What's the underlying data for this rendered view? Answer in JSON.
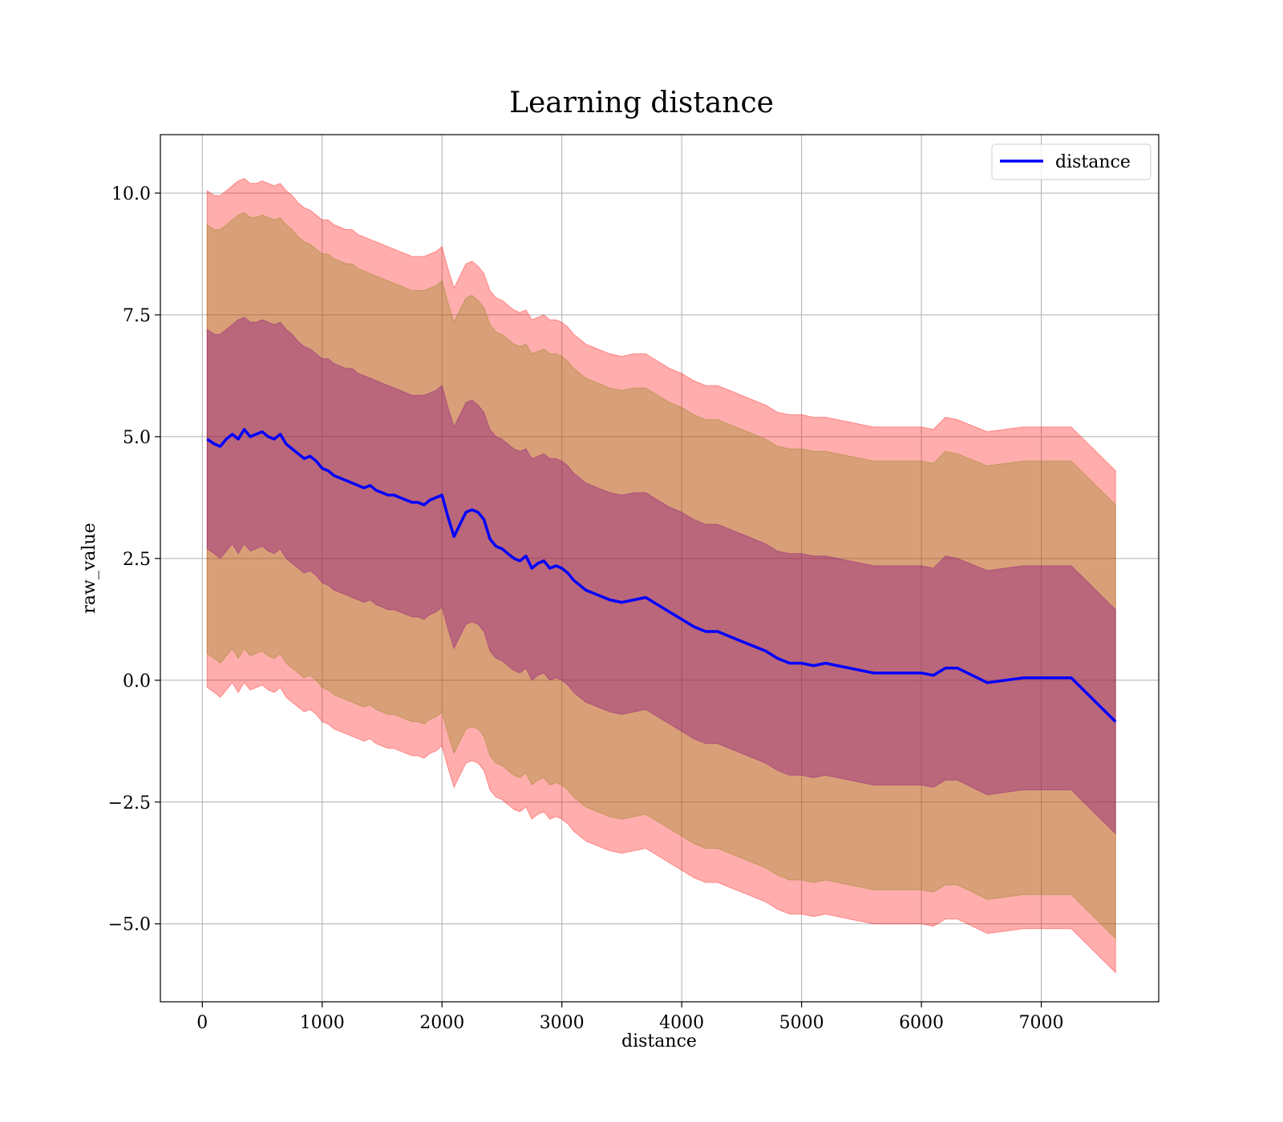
{
  "chart_data": {
    "type": "line",
    "title": "Learning distance",
    "xlabel": "distance",
    "ylabel": "raw_value",
    "xlim": [
      -350,
      7980
    ],
    "ylim": [
      -6.6,
      11.2
    ],
    "xticks": [
      0,
      1000,
      2000,
      3000,
      4000,
      5000,
      6000,
      7000
    ],
    "yticks": [
      -5.0,
      -2.5,
      0.0,
      2.5,
      5.0,
      7.5,
      10.0
    ],
    "xtick_labels": [
      "0",
      "1000",
      "2000",
      "3000",
      "4000",
      "5000",
      "6000",
      "7000"
    ],
    "ytick_labels": [
      "−5.0",
      "−2.5",
      "0.0",
      "2.5",
      "5.0",
      "7.5",
      "10.0"
    ],
    "grid": true,
    "legend_position": "top-right",
    "series": [
      {
        "name": "distance",
        "color": "#0000ff",
        "x": [
          40,
          100,
          150,
          200,
          250,
          300,
          350,
          400,
          450,
          500,
          550,
          600,
          650,
          700,
          750,
          800,
          850,
          900,
          950,
          1000,
          1050,
          1100,
          1150,
          1200,
          1250,
          1300,
          1350,
          1400,
          1450,
          1500,
          1550,
          1600,
          1650,
          1700,
          1750,
          1800,
          1850,
          1900,
          1950,
          2000,
          2050,
          2100,
          2150,
          2200,
          2250,
          2300,
          2350,
          2400,
          2450,
          2500,
          2550,
          2600,
          2650,
          2700,
          2750,
          2800,
          2850,
          2900,
          2950,
          3000,
          3050,
          3100,
          3150,
          3200,
          3300,
          3400,
          3500,
          3600,
          3700,
          3800,
          3900,
          4000,
          4100,
          4200,
          4300,
          4400,
          4500,
          4600,
          4700,
          4800,
          4900,
          5000,
          5100,
          5200,
          5300,
          5400,
          5500,
          5600,
          5700,
          5800,
          5900,
          6000,
          6100,
          6200,
          6300,
          6550,
          6850,
          7250,
          7620
        ],
        "y": [
          4.95,
          4.85,
          4.8,
          4.95,
          5.05,
          4.95,
          5.15,
          5.0,
          5.05,
          5.1,
          5.0,
          4.95,
          5.05,
          4.85,
          4.75,
          4.65,
          4.55,
          4.6,
          4.5,
          4.35,
          4.3,
          4.2,
          4.15,
          4.1,
          4.05,
          4.0,
          3.95,
          4.0,
          3.9,
          3.85,
          3.8,
          3.8,
          3.75,
          3.7,
          3.65,
          3.65,
          3.6,
          3.7,
          3.75,
          3.8,
          3.35,
          2.95,
          3.2,
          3.45,
          3.5,
          3.45,
          3.3,
          2.9,
          2.75,
          2.7,
          2.6,
          2.5,
          2.45,
          2.55,
          2.3,
          2.4,
          2.45,
          2.3,
          2.35,
          2.3,
          2.2,
          2.05,
          1.95,
          1.85,
          1.75,
          1.65,
          1.6,
          1.65,
          1.7,
          1.55,
          1.4,
          1.25,
          1.1,
          1.0,
          1.0,
          0.9,
          0.8,
          0.7,
          0.6,
          0.45,
          0.35,
          0.35,
          0.3,
          0.35,
          0.3,
          0.25,
          0.2,
          0.15,
          0.15,
          0.15,
          0.15,
          0.15,
          0.1,
          0.25,
          0.25,
          -0.05,
          0.05,
          0.05,
          -0.85
        ]
      }
    ],
    "bands": [
      {
        "color": "#ff0000",
        "opacity": 0.32,
        "upper": [
          10.05,
          9.95,
          9.95,
          10.05,
          10.15,
          10.25,
          10.3,
          10.2,
          10.2,
          10.25,
          10.2,
          10.15,
          10.2,
          10.05,
          9.95,
          9.8,
          9.7,
          9.65,
          9.55,
          9.45,
          9.45,
          9.35,
          9.3,
          9.25,
          9.25,
          9.15,
          9.1,
          9.05,
          9.0,
          8.95,
          8.9,
          8.85,
          8.8,
          8.75,
          8.7,
          8.7,
          8.7,
          8.75,
          8.8,
          8.9,
          8.45,
          8.05,
          8.3,
          8.55,
          8.6,
          8.5,
          8.35,
          8.0,
          7.85,
          7.8,
          7.7,
          7.6,
          7.55,
          7.6,
          7.4,
          7.45,
          7.5,
          7.4,
          7.4,
          7.35,
          7.25,
          7.1,
          7.0,
          6.9,
          6.8,
          6.7,
          6.65,
          6.7,
          6.7,
          6.55,
          6.4,
          6.3,
          6.15,
          6.05,
          6.05,
          5.95,
          5.85,
          5.75,
          5.65,
          5.5,
          5.45,
          5.45,
          5.4,
          5.4,
          5.35,
          5.3,
          5.25,
          5.2,
          5.2,
          5.2,
          5.2,
          5.2,
          5.15,
          5.4,
          5.35,
          5.1,
          5.2,
          5.2,
          4.3
        ],
        "lower": [
          -0.15,
          -0.25,
          -0.35,
          -0.2,
          -0.05,
          -0.25,
          -0.05,
          -0.2,
          -0.15,
          -0.1,
          -0.2,
          -0.25,
          -0.15,
          -0.35,
          -0.45,
          -0.55,
          -0.65,
          -0.6,
          -0.7,
          -0.85,
          -0.9,
          -1.0,
          -1.05,
          -1.1,
          -1.15,
          -1.2,
          -1.25,
          -1.2,
          -1.3,
          -1.35,
          -1.4,
          -1.4,
          -1.45,
          -1.5,
          -1.55,
          -1.55,
          -1.6,
          -1.5,
          -1.45,
          -1.35,
          -1.8,
          -2.2,
          -1.95,
          -1.7,
          -1.65,
          -1.7,
          -1.85,
          -2.25,
          -2.4,
          -2.45,
          -2.55,
          -2.65,
          -2.7,
          -2.6,
          -2.85,
          -2.75,
          -2.7,
          -2.85,
          -2.8,
          -2.85,
          -2.95,
          -3.1,
          -3.2,
          -3.3,
          -3.4,
          -3.5,
          -3.55,
          -3.5,
          -3.45,
          -3.6,
          -3.75,
          -3.9,
          -4.05,
          -4.15,
          -4.15,
          -4.25,
          -4.35,
          -4.45,
          -4.55,
          -4.7,
          -4.8,
          -4.8,
          -4.85,
          -4.8,
          -4.85,
          -4.9,
          -4.95,
          -5.0,
          -5.0,
          -5.0,
          -5.0,
          -5.0,
          -5.05,
          -4.9,
          -4.9,
          -5.2,
          -5.1,
          -5.1,
          -6.0
        ]
      },
      {
        "color": "#808000",
        "opacity": 0.3,
        "upper": [
          9.35,
          9.25,
          9.25,
          9.35,
          9.45,
          9.55,
          9.6,
          9.5,
          9.5,
          9.55,
          9.5,
          9.45,
          9.5,
          9.35,
          9.25,
          9.1,
          9.0,
          8.95,
          8.85,
          8.75,
          8.75,
          8.65,
          8.6,
          8.55,
          8.55,
          8.45,
          8.4,
          8.35,
          8.3,
          8.25,
          8.2,
          8.15,
          8.1,
          8.05,
          8.0,
          8.0,
          8.0,
          8.05,
          8.1,
          8.2,
          7.75,
          7.35,
          7.6,
          7.85,
          7.9,
          7.8,
          7.65,
          7.3,
          7.15,
          7.1,
          7.0,
          6.9,
          6.85,
          6.9,
          6.7,
          6.75,
          6.8,
          6.7,
          6.7,
          6.65,
          6.55,
          6.4,
          6.3,
          6.2,
          6.1,
          6.0,
          5.95,
          6.0,
          6.0,
          5.85,
          5.7,
          5.6,
          5.45,
          5.35,
          5.35,
          5.25,
          5.15,
          5.05,
          4.95,
          4.8,
          4.75,
          4.75,
          4.7,
          4.7,
          4.65,
          4.6,
          4.55,
          4.5,
          4.5,
          4.5,
          4.5,
          4.5,
          4.45,
          4.7,
          4.65,
          4.4,
          4.5,
          4.5,
          3.6
        ],
        "lower": [
          0.55,
          0.45,
          0.35,
          0.5,
          0.65,
          0.45,
          0.65,
          0.5,
          0.55,
          0.6,
          0.5,
          0.45,
          0.55,
          0.35,
          0.25,
          0.15,
          0.05,
          0.1,
          0.0,
          -0.15,
          -0.2,
          -0.3,
          -0.35,
          -0.4,
          -0.45,
          -0.5,
          -0.55,
          -0.5,
          -0.6,
          -0.65,
          -0.7,
          -0.7,
          -0.75,
          -0.8,
          -0.85,
          -0.85,
          -0.9,
          -0.8,
          -0.75,
          -0.65,
          -1.1,
          -1.5,
          -1.25,
          -1.0,
          -0.95,
          -1.0,
          -1.15,
          -1.55,
          -1.7,
          -1.75,
          -1.85,
          -1.95,
          -2.0,
          -1.9,
          -2.15,
          -2.05,
          -2.0,
          -2.15,
          -2.1,
          -2.15,
          -2.25,
          -2.4,
          -2.5,
          -2.6,
          -2.7,
          -2.8,
          -2.85,
          -2.8,
          -2.75,
          -2.9,
          -3.05,
          -3.2,
          -3.35,
          -3.45,
          -3.45,
          -3.55,
          -3.65,
          -3.75,
          -3.85,
          -4.0,
          -4.1,
          -4.1,
          -4.15,
          -4.1,
          -4.15,
          -4.2,
          -4.25,
          -4.3,
          -4.3,
          -4.3,
          -4.3,
          -4.3,
          -4.35,
          -4.2,
          -4.2,
          -4.5,
          -4.4,
          -4.4,
          -5.3
        ]
      },
      {
        "color": "#800080",
        "opacity": 0.35,
        "upper": [
          7.2,
          7.1,
          7.1,
          7.2,
          7.3,
          7.4,
          7.45,
          7.35,
          7.35,
          7.4,
          7.35,
          7.3,
          7.35,
          7.2,
          7.1,
          6.95,
          6.85,
          6.8,
          6.7,
          6.6,
          6.6,
          6.5,
          6.45,
          6.4,
          6.4,
          6.3,
          6.25,
          6.2,
          6.15,
          6.1,
          6.05,
          6.0,
          5.95,
          5.9,
          5.85,
          5.85,
          5.85,
          5.9,
          5.95,
          6.05,
          5.6,
          5.2,
          5.45,
          5.7,
          5.75,
          5.65,
          5.5,
          5.15,
          5.0,
          4.95,
          4.85,
          4.75,
          4.7,
          4.75,
          4.55,
          4.6,
          4.65,
          4.55,
          4.55,
          4.5,
          4.4,
          4.25,
          4.15,
          4.05,
          3.95,
          3.85,
          3.8,
          3.85,
          3.85,
          3.7,
          3.55,
          3.45,
          3.3,
          3.2,
          3.2,
          3.1,
          3.0,
          2.9,
          2.8,
          2.65,
          2.6,
          2.6,
          2.55,
          2.55,
          2.5,
          2.45,
          2.4,
          2.35,
          2.35,
          2.35,
          2.35,
          2.35,
          2.3,
          2.55,
          2.5,
          2.25,
          2.35,
          2.35,
          1.45
        ],
        "lower": [
          2.7,
          2.6,
          2.5,
          2.65,
          2.8,
          2.6,
          2.8,
          2.65,
          2.7,
          2.75,
          2.65,
          2.6,
          2.7,
          2.5,
          2.4,
          2.3,
          2.2,
          2.25,
          2.15,
          2.0,
          1.95,
          1.85,
          1.8,
          1.75,
          1.7,
          1.65,
          1.6,
          1.65,
          1.55,
          1.5,
          1.45,
          1.45,
          1.4,
          1.35,
          1.3,
          1.3,
          1.25,
          1.35,
          1.4,
          1.5,
          1.05,
          0.65,
          0.9,
          1.15,
          1.2,
          1.15,
          1.0,
          0.6,
          0.45,
          0.4,
          0.3,
          0.2,
          0.15,
          0.25,
          0.0,
          0.1,
          0.15,
          0.0,
          0.05,
          0.0,
          -0.1,
          -0.25,
          -0.35,
          -0.45,
          -0.55,
          -0.65,
          -0.7,
          -0.65,
          -0.6,
          -0.75,
          -0.9,
          -1.05,
          -1.2,
          -1.3,
          -1.3,
          -1.4,
          -1.5,
          -1.6,
          -1.7,
          -1.85,
          -1.95,
          -1.95,
          -2.0,
          -1.95,
          -2.0,
          -2.05,
          -2.1,
          -2.15,
          -2.15,
          -2.15,
          -2.15,
          -2.15,
          -2.2,
          -2.05,
          -2.05,
          -2.35,
          -2.25,
          -2.25,
          -3.15
        ]
      }
    ]
  }
}
